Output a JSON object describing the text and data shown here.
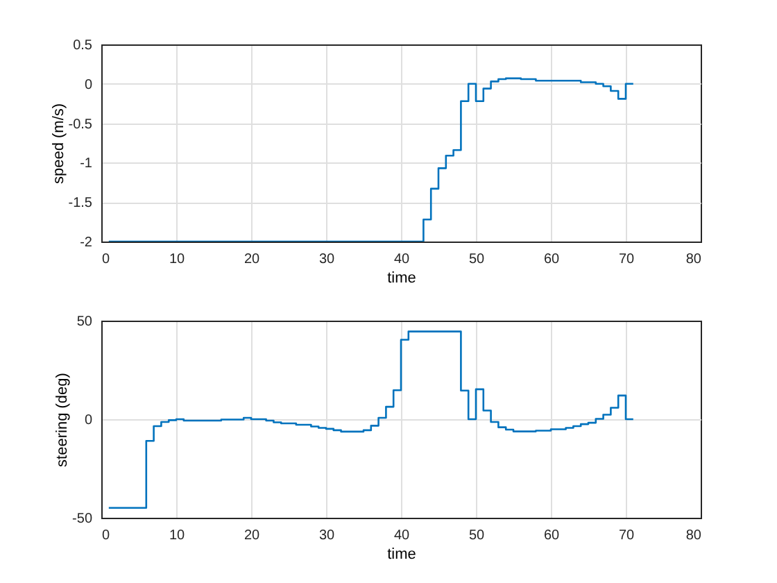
{
  "chart_data": [
    {
      "type": "step",
      "xlabel": "time",
      "ylabel": "speed (m/s)",
      "color": "#0072bd",
      "grid": true,
      "xlim": [
        0,
        80
      ],
      "xticks": [
        0,
        10,
        20,
        30,
        40,
        50,
        60,
        70,
        80
      ],
      "ylim": [
        -2,
        0.5
      ],
      "yticks": [
        -2,
        -1.5,
        -1,
        -0.5,
        0,
        0.5
      ],
      "x": [
        1,
        43,
        44,
        45,
        46,
        47,
        48,
        49,
        50,
        51,
        52,
        53,
        54,
        56,
        58,
        64,
        66,
        67,
        68,
        69,
        70,
        71
      ],
      "values": [
        -2,
        -1.72,
        -1.33,
        -1.07,
        -0.91,
        -0.84,
        -0.22,
        0,
        -0.22,
        -0.06,
        0.03,
        0.06,
        0.07,
        0.06,
        0.04,
        0.02,
        0,
        -0.03,
        -0.09,
        -0.19,
        0,
        0
      ]
    },
    {
      "type": "step",
      "xlabel": "time",
      "ylabel": "steering (deg)",
      "color": "#0072bd",
      "grid": true,
      "xlim": [
        0,
        80
      ],
      "xticks": [
        0,
        10,
        20,
        30,
        40,
        50,
        60,
        70,
        80
      ],
      "ylim": [
        -50,
        50
      ],
      "yticks": [
        -50,
        0,
        50
      ],
      "x": [
        1,
        6,
        7,
        8,
        9,
        10,
        11,
        16,
        19,
        20,
        22,
        23,
        24,
        26,
        28,
        29,
        30,
        31,
        32,
        35,
        36,
        37,
        38,
        39,
        40,
        41,
        48,
        49,
        50,
        51,
        52,
        53,
        54,
        55,
        58,
        60,
        62,
        63,
        64,
        65,
        66,
        67,
        68,
        69,
        70,
        71
      ],
      "values": [
        -45,
        -11,
        -3.5,
        -1.4,
        -0.5,
        0,
        -0.7,
        -0.2,
        0.7,
        0,
        -0.7,
        -1.6,
        -2.1,
        -2.8,
        -3.7,
        -4.4,
        -4.9,
        -5.6,
        -6.3,
        -5.6,
        -3.3,
        0.7,
        6.3,
        14.7,
        40.3,
        44.5,
        14.5,
        0,
        15.2,
        4.4,
        -1.4,
        -4.1,
        -5.3,
        -6.2,
        -5.8,
        -5.1,
        -4.4,
        -3.5,
        -2.5,
        -1.8,
        0.2,
        2.3,
        5.8,
        12,
        0,
        0
      ]
    }
  ]
}
